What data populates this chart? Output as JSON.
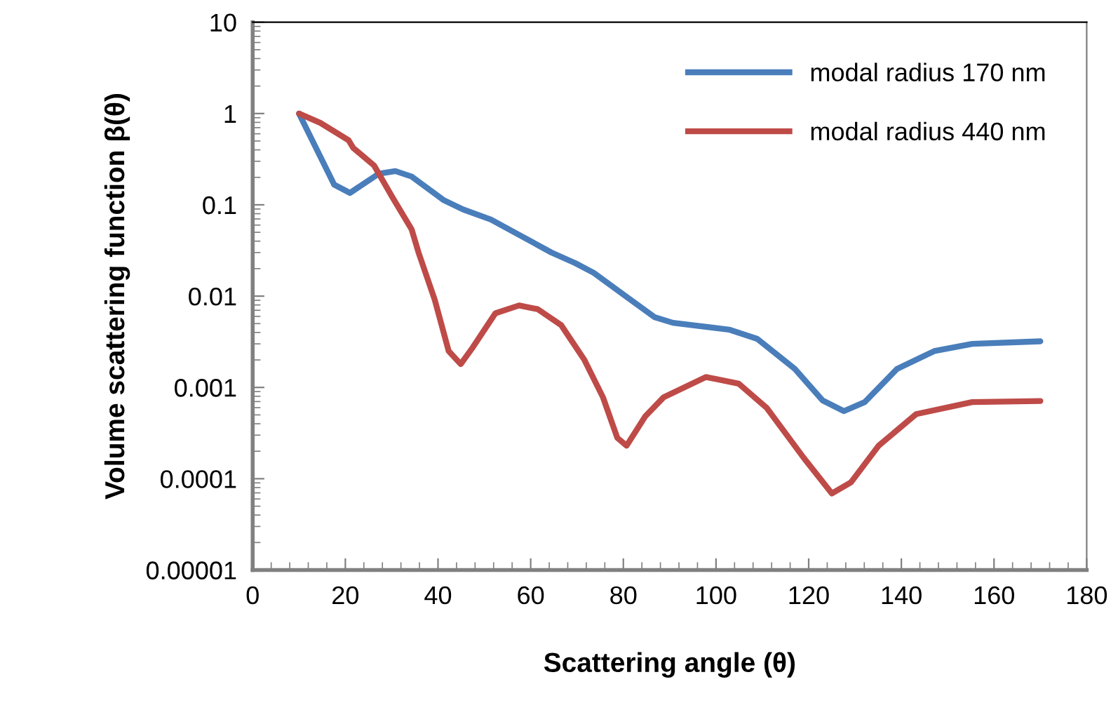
{
  "chart_data": {
    "type": "line",
    "xlabel": "Scattering angle (θ)",
    "ylabel": "Volume scattering function β(θ)",
    "log": "y",
    "grid": false,
    "legend": "top right",
    "marker": "none",
    "line_style": "solid",
    "xlim": [
      0,
      180
    ],
    "xticks": [
      0,
      20,
      40,
      60,
      80,
      100,
      120,
      140,
      160,
      180
    ],
    "ylim": [
      1e-05,
      10
    ],
    "yticks": [
      {
        "value": 1e-05,
        "label": "0.00001"
      },
      {
        "value": 0.0001,
        "label": "0.0001"
      },
      {
        "value": 0.001,
        "label": "0.001"
      },
      {
        "value": 0.01,
        "label": "0.01"
      },
      {
        "value": 0.1,
        "label": "0.1"
      },
      1,
      10
    ],
    "series": [
      {
        "name": "modal radius 170 nm",
        "color": "#4a7ebb",
        "x": [
          10,
          17.6,
          21,
          27.2,
          30.8,
          34.3,
          41.3,
          45.4,
          51.4,
          58.5,
          64.5,
          69.6,
          73.6,
          80.7,
          86.7,
          90.7,
          102.8,
          108.9,
          117,
          123,
          127.6,
          132.1,
          139.1,
          147.1,
          155.3,
          170
        ],
        "values": [
          1,
          0.166,
          0.135,
          0.219,
          0.234,
          0.204,
          0.112,
          0.089,
          0.069,
          0.044,
          0.03,
          0.023,
          0.018,
          0.0098,
          0.0059,
          0.0051,
          0.0043,
          0.0034,
          0.0016,
          0.00072,
          0.00055,
          0.00069,
          0.0016,
          0.0025,
          0.003,
          0.0032
        ]
      },
      {
        "name": "modal radius 440 nm",
        "color": "#be4b48",
        "x": [
          10,
          14.6,
          20.7,
          21.7,
          26.2,
          30.2,
          34.3,
          35.8,
          39.3,
          42.3,
          44.9,
          47.4,
          52.4,
          57.5,
          61.5,
          66.6,
          71.6,
          75.6,
          78.7,
          80.7,
          84.7,
          88.7,
          97.8,
          104.9,
          110.9,
          118.9,
          125,
          129.1,
          135.1,
          143.2,
          155.3,
          170
        ],
        "values": [
          1,
          0.79,
          0.51,
          0.42,
          0.27,
          0.12,
          0.054,
          0.03,
          0.0091,
          0.0025,
          0.0018,
          0.0027,
          0.0065,
          0.0079,
          0.0072,
          0.0048,
          0.002,
          0.00078,
          0.00028,
          0.00023,
          0.00048,
          0.00078,
          0.0013,
          0.0011,
          0.0006,
          0.00017,
          6.9e-05,
          9.1e-05,
          0.00023,
          0.00051,
          0.00069,
          0.00071
        ]
      }
    ]
  }
}
